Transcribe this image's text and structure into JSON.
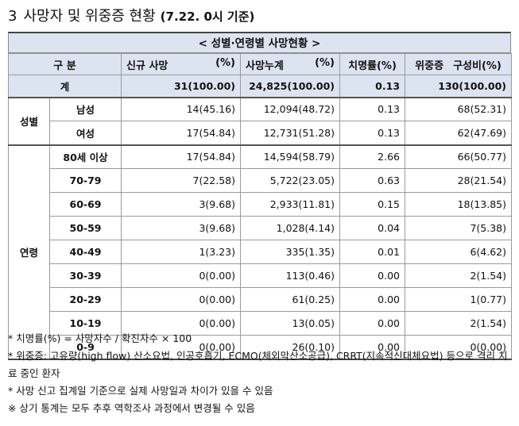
{
  "title": {
    "number": "3",
    "text": "사망자 및 위중증 현황",
    "basis": "(7.22. 0시 기준)"
  },
  "table": {
    "caption": "< 성별·연령별 사망현황 >",
    "headers": {
      "category": "구 분",
      "new_deaths": "신규 사망",
      "new_deaths_pct": "(%)",
      "cum_deaths": "사망누계",
      "cum_deaths_pct": "(%)",
      "fatality": "치명률(%)",
      "severe": "위중증",
      "severe_pct": "구성비(%)"
    },
    "total": {
      "label": "계",
      "new": "31(100.00)",
      "cum": "24,825(100.00)",
      "fatality": "0.13",
      "severe": "130(100.00)"
    },
    "sex_group": "성별",
    "sex_rows": [
      {
        "label": "남성",
        "new": "14(45.16)",
        "cum": "12,094(48.72)",
        "fatality": "0.13",
        "severe": "68(52.31)"
      },
      {
        "label": "여성",
        "new": "17(54.84)",
        "cum": "12,731(51.28)",
        "fatality": "0.13",
        "severe": "62(47.69)"
      }
    ],
    "age_group": "연령",
    "age_rows": [
      {
        "label": "80세 이상",
        "new": "17(54.84)",
        "cum": "14,594(58.79)",
        "fatality": "2.66",
        "severe": "66(50.77)"
      },
      {
        "label": "70-79",
        "new": "7(22.58)",
        "cum": "5,722(23.05)",
        "fatality": "0.63",
        "severe": "28(21.54)"
      },
      {
        "label": "60-69",
        "new": "3(9.68)",
        "cum": "2,933(11.81)",
        "fatality": "0.15",
        "severe": "18(13.85)"
      },
      {
        "label": "50-59",
        "new": "3(9.68)",
        "cum": "1,028(4.14)",
        "fatality": "0.04",
        "severe": "7(5.38)"
      },
      {
        "label": "40-49",
        "new": "1(3.23)",
        "cum": "335(1.35)",
        "fatality": "0.01",
        "severe": "6(4.62)"
      },
      {
        "label": "30-39",
        "new": "0(0.00)",
        "cum": "113(0.46)",
        "fatality": "0.00",
        "severe": "2(1.54)"
      },
      {
        "label": "20-29",
        "new": "0(0.00)",
        "cum": "61(0.25)",
        "fatality": "0.00",
        "severe": "1(0.77)"
      },
      {
        "label": "10-19",
        "new": "0(0.00)",
        "cum": "13(0.05)",
        "fatality": "0.00",
        "severe": "2(1.54)"
      },
      {
        "label": "0-9",
        "new": "0(0.00)",
        "cum": "26(0.10)",
        "fatality": "0.00",
        "severe": "0(0.00)"
      }
    ]
  },
  "notes": [
    "* 치명률(%) = 사망자수 / 확진자수 × 100",
    "* 위중증: 고유량(high flow) 산소요법, 인공호흡기, ECMO(체외막산소공급), CRRT(지속적신대체요법) 등으로 격리 치료 중인 환자",
    "* 사망 신고 집계일 기준으로 실제 사망일과 차이가 있을 수 있음",
    "※ 상기 통계는 모두 추후 역학조사 과정에서 변경될 수 있음"
  ]
}
